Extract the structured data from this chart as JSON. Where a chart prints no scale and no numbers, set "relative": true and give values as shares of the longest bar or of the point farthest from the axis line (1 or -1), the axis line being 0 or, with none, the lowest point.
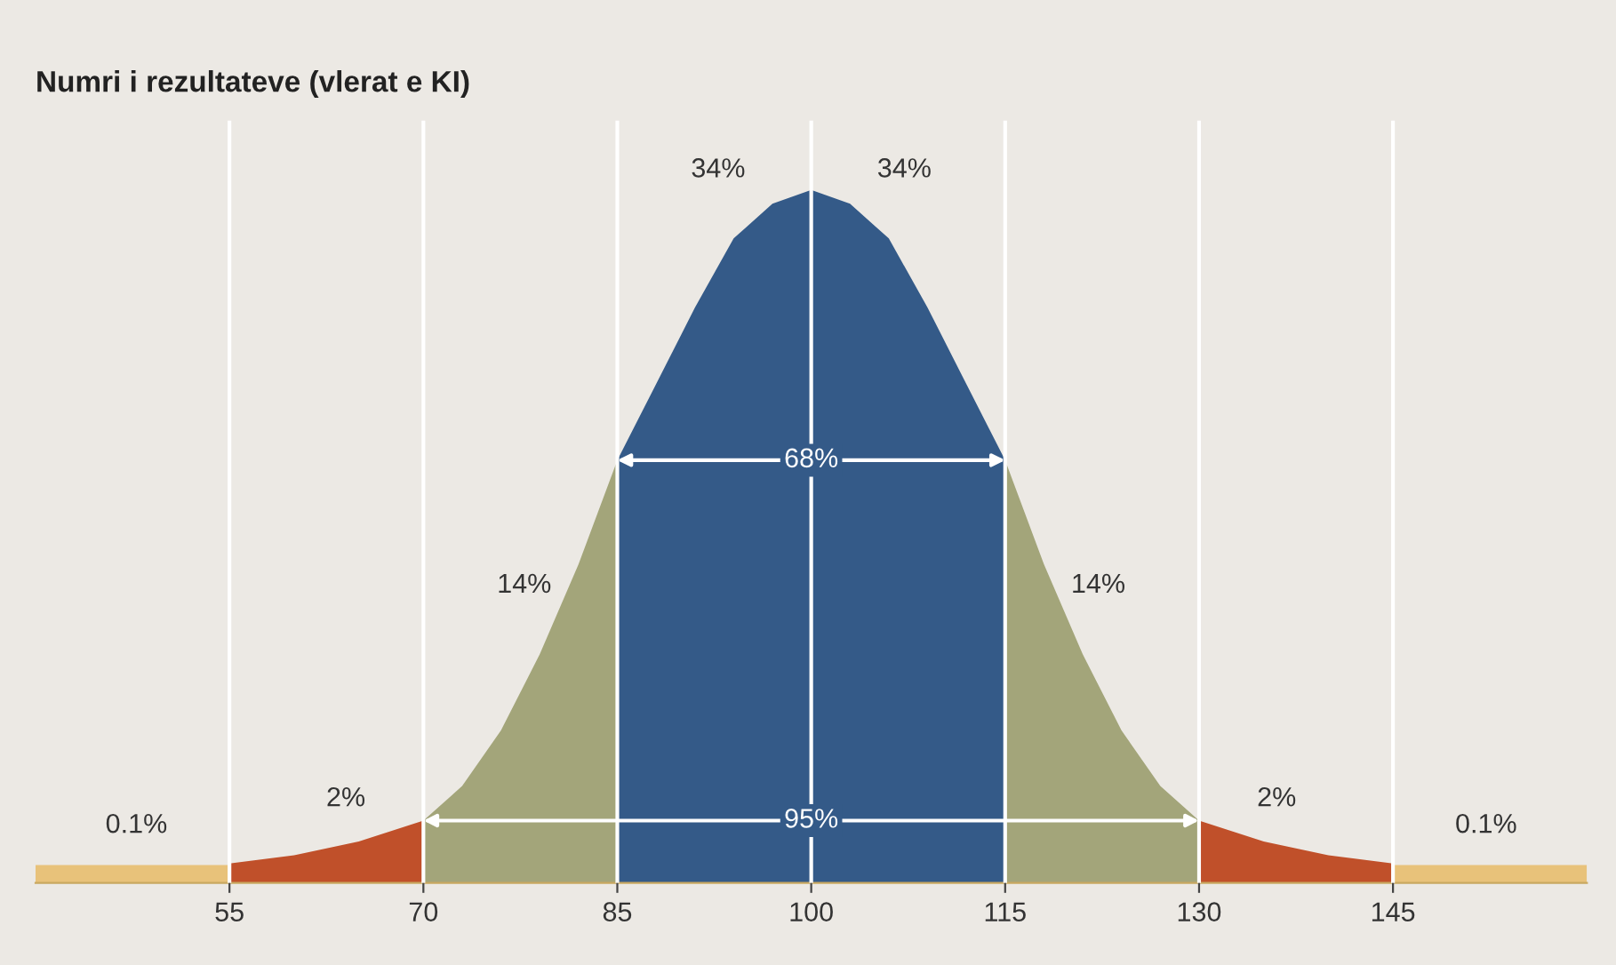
{
  "chart_data": {
    "type": "area",
    "title": "Numri i rezultateve (vlerat e KI)",
    "relative": true,
    "xlim": [
      40,
      160
    ],
    "xticks": [
      55,
      70,
      85,
      100,
      115,
      130,
      145
    ],
    "grid": "x",
    "tick_labels": "x",
    "legend": false,
    "series": [
      {
        "color": "#e8c27a",
        "x": [
          40,
          55
        ],
        "values": [
          0.026,
          0.026
        ]
      },
      {
        "color": "#c0502a",
        "x": [
          55,
          60,
          65,
          70
        ],
        "values": [
          0.028,
          0.04,
          0.06,
          0.09
        ]
      },
      {
        "color": "#a3a57a",
        "x": [
          70,
          73,
          76,
          79,
          82,
          85
        ],
        "values": [
          0.09,
          0.14,
          0.22,
          0.33,
          0.46,
          0.61
        ]
      },
      {
        "color": "#345a88",
        "x": [
          85,
          88,
          91,
          94,
          97,
          100,
          103,
          106,
          109,
          112,
          115
        ],
        "values": [
          0.61,
          0.72,
          0.83,
          0.93,
          0.98,
          1.0,
          0.98,
          0.93,
          0.83,
          0.72,
          0.61
        ]
      },
      {
        "color": "#a3a57a",
        "x": [
          115,
          118,
          121,
          124,
          127,
          130
        ],
        "values": [
          0.61,
          0.46,
          0.33,
          0.22,
          0.14,
          0.09
        ]
      },
      {
        "color": "#c0502a",
        "x": [
          130,
          135,
          140,
          145
        ],
        "values": [
          0.09,
          0.06,
          0.04,
          0.028
        ]
      },
      {
        "color": "#e8c27a",
        "x": [
          145,
          160
        ],
        "values": [
          0.026,
          0.026
        ]
      }
    ],
    "annotations": [
      "34%",
      "34%",
      "68%",
      "14%",
      "14%",
      "2%",
      "2%",
      "0.1%",
      "0.1%",
      "95%"
    ]
  }
}
